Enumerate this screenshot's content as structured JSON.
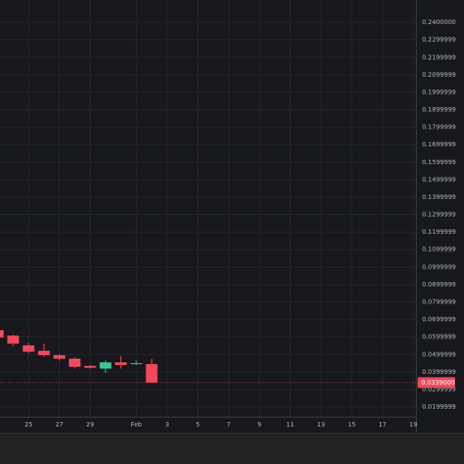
{
  "chart_data": {
    "type": "candlestick",
    "categories": [
      null,
      null,
      "25",
      null,
      "27",
      null,
      "29",
      null,
      null,
      "Feb",
      null,
      "3",
      null,
      "5",
      null,
      "7",
      null,
      "9",
      null,
      "11",
      null,
      "13",
      null,
      "15",
      null,
      "17",
      null,
      "19"
    ],
    "open": [
      0.0639,
      0.0608,
      0.0552,
      0.0521,
      0.0496,
      0.0476,
      0.0435,
      0.0419,
      0.0455,
      0.0445,
      0.0445,
      null,
      null,
      null,
      null,
      null,
      null,
      null,
      null,
      null,
      null,
      null,
      null,
      null,
      null,
      null,
      null,
      null
    ],
    "high": [
      0.0645,
      0.0612,
      0.0567,
      0.0562,
      0.0501,
      0.0486,
      0.044,
      0.0465,
      0.0491,
      0.0465,
      0.0476,
      null,
      null,
      null,
      null,
      null,
      null,
      null,
      null,
      null,
      null,
      null,
      null,
      null,
      null,
      null,
      null,
      null
    ],
    "low": [
      0.0592,
      0.0547,
      0.0506,
      0.0486,
      0.0465,
      0.0419,
      0.0419,
      0.0394,
      0.0419,
      0.044,
      0.0339,
      null,
      null,
      null,
      null,
      null,
      null,
      null,
      null,
      null,
      null,
      null,
      null,
      null,
      null,
      null,
      null,
      null
    ],
    "close": [
      0.0597,
      0.0562,
      0.0516,
      0.0496,
      0.0476,
      0.043,
      0.0424,
      0.0455,
      0.044,
      0.045,
      0.0339,
      null,
      null,
      null,
      null,
      null,
      null,
      null,
      null,
      null,
      null,
      null,
      null,
      null,
      null,
      null,
      null,
      null
    ],
    "last_value_label": "0.0339000",
    "up_color": "#3cc48e",
    "down_color": "#f4495a",
    "ylim": [
      0.0144,
      0.2528
    ],
    "yticks": [
      {
        "value": 0.24,
        "label": "0.2400000"
      },
      0.2299999,
      0.2199999,
      0.2099999,
      0.1999999,
      0.1899999,
      0.1799999,
      0.1699999,
      0.1599999,
      0.1499999,
      0.1399999,
      0.1299999,
      0.1199999,
      0.1099999,
      0.0999999,
      0.0899999,
      0.0799999,
      0.0699999,
      0.0599999,
      0.0499999,
      0.0399999,
      0.0299999,
      0.0199999
    ],
    "grid": true
  }
}
